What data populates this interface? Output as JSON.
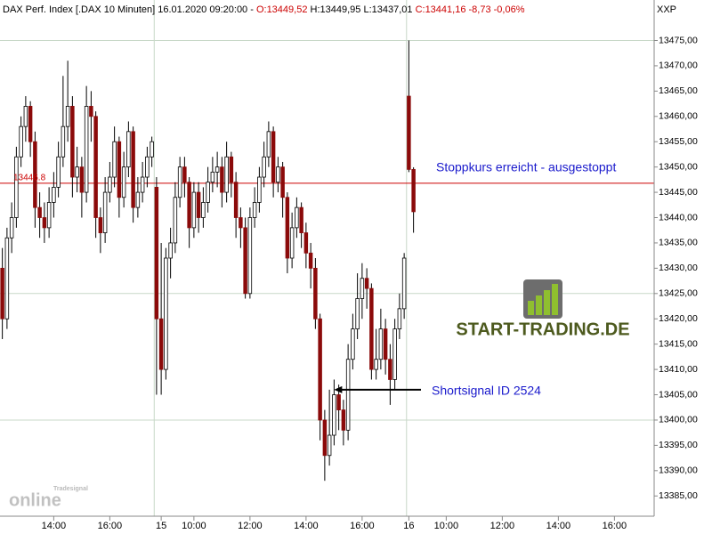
{
  "chart_data": {
    "type": "candlestick",
    "title": [
      {
        "text": "DAX Perf. Index [.DAX  10 Minuten] 16.01.2020 09:20:00 - ",
        "color": "#000000"
      },
      {
        "text": "O:13449,52",
        "color": "#cc0000"
      },
      {
        "text": " H:13449,95 L:13437,01 ",
        "color": "#000000"
      },
      {
        "text": "C:13441,16 -8,73 -0,06%",
        "color": "#cc0000"
      }
    ],
    "axis_code": "XXP",
    "up_color": "#ffffff",
    "down_color": "#8b0a0a",
    "open": [
      13430,
      13420,
      13436,
      13440,
      13452,
      13458,
      13462,
      13455,
      13442,
      13440,
      13438,
      13443,
      13446,
      13452,
      13458,
      13462,
      13448,
      13450,
      13445,
      13462,
      13460,
      13440,
      13437,
      13445,
      13448,
      13455,
      13444,
      13450,
      13457,
      13442,
      13445,
      13448,
      13452,
      13446,
      13420,
      13410,
      13432,
      13435,
      13444,
      13450,
      13447,
      13438,
      13445,
      13440,
      13443,
      13447,
      13449,
      13450,
      13445,
      13452,
      13447,
      13440,
      13438,
      13425,
      13440,
      13443,
      13448,
      13452,
      13457,
      13447,
      13450,
      13444,
      13432,
      13438,
      13442,
      13437,
      13433,
      13430,
      13420,
      13400,
      13393,
      13397,
      13405,
      13402,
      13398,
      13412,
      13418,
      13424,
      13428,
      13426,
      13410,
      13412,
      13418,
      13412,
      13408,
      13418,
      13422,
      13464,
      13449.52
    ],
    "high": [
      13434,
      13438,
      13443,
      13454,
      13460,
      13464,
      13463,
      13457,
      13445,
      13443,
      13446,
      13449,
      13455,
      13468,
      13471,
      13464,
      13454,
      13452,
      13466,
      13465,
      13461,
      13442,
      13448,
      13451,
      13458,
      13456,
      13453,
      13459,
      13458,
      13448,
      13451,
      13454,
      13456,
      13448,
      13435,
      13434,
      13438,
      13447,
      13452,
      13452,
      13448,
      13447,
      13447,
      13446,
      13450,
      13452,
      13453,
      13452,
      13455,
      13453,
      13449,
      13442,
      13440,
      13442,
      13446,
      13450,
      13455,
      13459,
      13458,
      13452,
      13451,
      13445,
      13441,
      13444,
      13443,
      13439,
      13435,
      13432,
      13421,
      13402,
      13406,
      13408,
      13407,
      13404,
      13415,
      13421,
      13429,
      13431,
      13430,
      13427,
      13418,
      13422,
      13420,
      13415,
      13420,
      13425,
      13433,
      13475,
      13449.95
    ],
    "low": [
      13416,
      13418,
      13433,
      13438,
      13450,
      13455,
      13452,
      13438,
      13436,
      13435,
      13436,
      13440,
      13444,
      13450,
      13455,
      13444,
      13445,
      13440,
      13443,
      13455,
      13436,
      13433,
      13435,
      13443,
      13446,
      13440,
      13442,
      13448,
      13439,
      13440,
      13443,
      13446,
      13450,
      13405,
      13405,
      13408,
      13428,
      13433,
      13442,
      13444,
      13434,
      13436,
      13437,
      13438,
      13441,
      13445,
      13446,
      13442,
      13443,
      13444,
      13436,
      13434,
      13424,
      13424,
      13438,
      13441,
      13446,
      13450,
      13444,
      13445,
      13440,
      13429,
      13430,
      13436,
      13434,
      13430,
      13426,
      13418,
      13396,
      13388,
      13391,
      13395,
      13398,
      13395,
      13396,
      13410,
      13416,
      13420,
      13422,
      13408,
      13408,
      13410,
      13409,
      13403,
      13406,
      13416,
      13420,
      13449,
      13437.01
    ],
    "close": [
      13420,
      13436,
      13440,
      13452,
      13458,
      13462,
      13455,
      13442,
      13440,
      13438,
      13443,
      13446,
      13452,
      13458,
      13462,
      13448,
      13450,
      13445,
      13462,
      13460,
      13440,
      13437,
      13445,
      13448,
      13455,
      13444,
      13450,
      13457,
      13442,
      13445,
      13448,
      13452,
      13455,
      13420,
      13410,
      13432,
      13435,
      13444,
      13450,
      13447,
      13438,
      13445,
      13440,
      13443,
      13447,
      13449,
      13450,
      13445,
      13452,
      13447,
      13440,
      13438,
      13425,
      13440,
      13443,
      13448,
      13452,
      13457,
      13447,
      13450,
      13444,
      13432,
      13438,
      13442,
      13437,
      13433,
      13430,
      13420,
      13400,
      13393,
      13397,
      13405,
      13402,
      13398,
      13412,
      13418,
      13424,
      13428,
      13426,
      13410,
      13412,
      13418,
      13412,
      13408,
      13418,
      13422,
      13432,
      13449.52,
      13441.16
    ],
    "xlim": [
      -0.5,
      139.5
    ],
    "xticks": [
      {
        "value": 11,
        "label": "14:00"
      },
      {
        "value": 23,
        "label": "16:00"
      },
      {
        "value": 34,
        "label": "15"
      },
      {
        "value": 41,
        "label": "10:00"
      },
      {
        "value": 53,
        "label": "12:00"
      },
      {
        "value": 65,
        "label": "14:00"
      },
      {
        "value": 77,
        "label": "16:00"
      },
      {
        "value": 87,
        "label": "16"
      },
      {
        "value": 95,
        "label": "10:00"
      },
      {
        "value": 107,
        "label": "12:00"
      },
      {
        "value": 119,
        "label": "14:00"
      },
      {
        "value": 131,
        "label": "16:00"
      }
    ],
    "ylim": [
      13381,
      13483
    ],
    "yticks": [
      {
        "value": 13385,
        "label": "13385,00"
      },
      {
        "value": 13390,
        "label": "13390,00"
      },
      {
        "value": 13395,
        "label": "13395,00"
      },
      {
        "value": 13400,
        "label": "13400,00"
      },
      {
        "value": 13405,
        "label": "13405,00"
      },
      {
        "value": 13410,
        "label": "13410,00"
      },
      {
        "value": 13415,
        "label": "13415,00"
      },
      {
        "value": 13420,
        "label": "13420,00"
      },
      {
        "value": 13425,
        "label": "13425,00"
      },
      {
        "value": 13430,
        "label": "13430,00"
      },
      {
        "value": 13435,
        "label": "13435,00"
      },
      {
        "value": 13440,
        "label": "13440,00"
      },
      {
        "value": 13445,
        "label": "13445,00"
      },
      {
        "value": 13450,
        "label": "13450,00"
      },
      {
        "value": 13455,
        "label": "13455,00"
      },
      {
        "value": 13460,
        "label": "13460,00"
      },
      {
        "value": 13465,
        "label": "13465,00"
      },
      {
        "value": 13470,
        "label": "13470,00"
      },
      {
        "value": 13475,
        "label": "13475,00"
      }
    ],
    "hgrid": [
      13475,
      13425,
      13400
    ],
    "vgrid": [
      33,
      87
    ],
    "stop_level": 13446.8,
    "stop_color": "#cc0000",
    "annotations": [
      {
        "text": "Stoppkurs erreicht - ausgestoppt",
        "color": "#1a1acc"
      },
      {
        "text": "Shortsignal ID 2524",
        "color": "#1a1acc",
        "arrow_to": 71,
        "arrow_at": 13406
      }
    ],
    "logo": "START-TRADING.DE",
    "watermark": [
      "Tradesignal",
      "online"
    ]
  }
}
